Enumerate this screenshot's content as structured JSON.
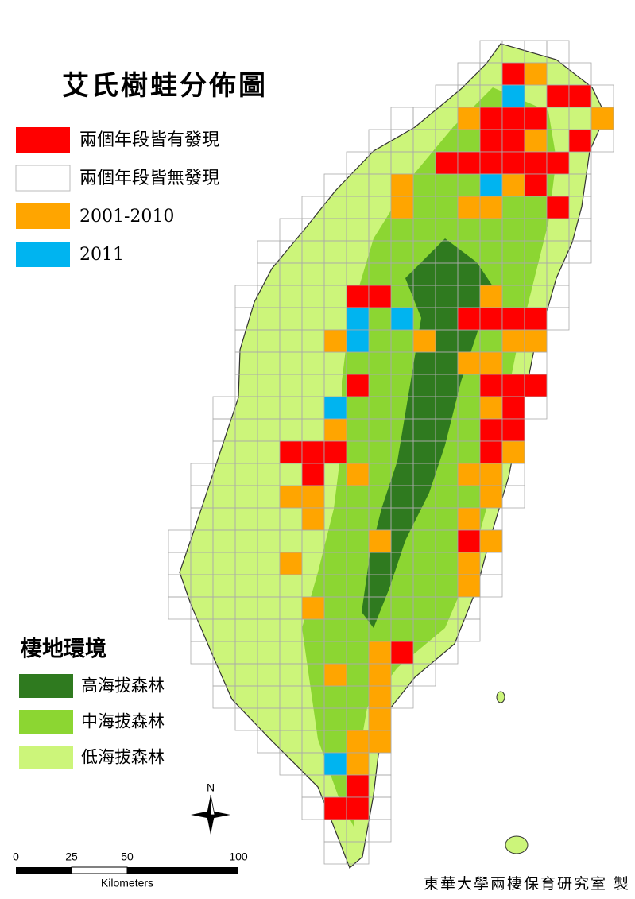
{
  "title": "艾氏樹蛙分佈圖",
  "legend": {
    "items": [
      "兩個年段皆有發現",
      "兩個年段皆無發現",
      "2001-2010",
      "2011"
    ]
  },
  "habitat_legend": {
    "title": "棲地環境",
    "items": [
      "高海拔森林",
      "中海拔森林",
      "低海拔森林"
    ]
  },
  "scale_bar": {
    "ticks": [
      0,
      25,
      50,
      100
    ],
    "unit": "Kilometers"
  },
  "north": "N",
  "credit": "東華大學兩棲保育研究室 製"
}
